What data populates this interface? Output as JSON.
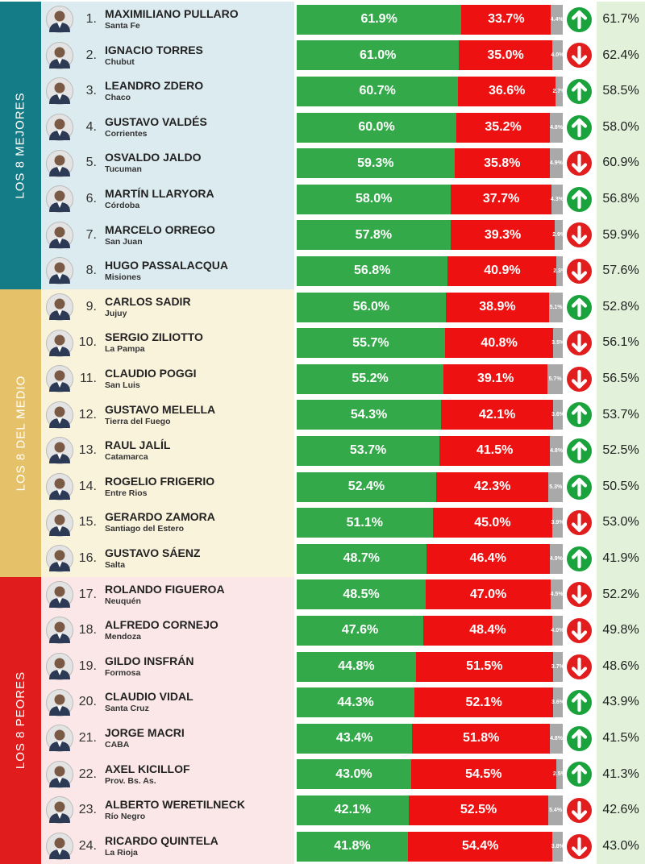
{
  "chart_data": {
    "type": "bar",
    "stacked": true,
    "orientation": "horizontal",
    "colors": {
      "positive": "#33a94a",
      "negative": "#ee1111",
      "neutral": "#a9a9a9",
      "trend_up": "#1aa33c",
      "trend_down": "#e11d1d",
      "previous_bg": "#e1f1da"
    },
    "sections": [
      {
        "title": "LOS 8 MEJORES",
        "color": "#137c87",
        "panel_color": "#dcebef",
        "start": 0,
        "count": 8
      },
      {
        "title": "LOS 8 DEL MEDIO",
        "color": "#e5c16a",
        "panel_color": "#faf3dc",
        "start": 8,
        "count": 8
      },
      {
        "title": "LOS 8 PEORES",
        "color": "#e01c1c",
        "panel_color": "#fbe7e7",
        "start": 16,
        "count": 8
      }
    ],
    "rows": [
      {
        "rank": "1.",
        "name": "MAXIMILIANO PULLARO",
        "province": "Santa Fe",
        "approve": 61.9,
        "approve_label": "61.9%",
        "disapprove": 33.7,
        "disapprove_label": "33.7%",
        "other": 4.4,
        "other_label": "4.4%",
        "trend": "up",
        "previous_label": "61.7%"
      },
      {
        "rank": "2.",
        "name": "IGNACIO TORRES",
        "province": "Chubut",
        "approve": 61.0,
        "approve_label": "61.0%",
        "disapprove": 35.0,
        "disapprove_label": "35.0%",
        "other": 4.0,
        "other_label": "4.0%",
        "trend": "down",
        "previous_label": "62.4%"
      },
      {
        "rank": "3.",
        "name": "LEANDRO ZDERO",
        "province": "Chaco",
        "approve": 60.7,
        "approve_label": "60.7%",
        "disapprove": 36.6,
        "disapprove_label": "36.6%",
        "other": 2.7,
        "other_label": "2.7%",
        "trend": "up",
        "previous_label": "58.5%"
      },
      {
        "rank": "4.",
        "name": "GUSTAVO VALDÉS",
        "province": "Corrientes",
        "approve": 60.0,
        "approve_label": "60.0%",
        "disapprove": 35.2,
        "disapprove_label": "35.2%",
        "other": 4.8,
        "other_label": "4.8%",
        "trend": "up",
        "previous_label": "58.0%"
      },
      {
        "rank": "5.",
        "name": "OSVALDO JALDO",
        "province": "Tucuman",
        "approve": 59.3,
        "approve_label": "59.3%",
        "disapprove": 35.8,
        "disapprove_label": "35.8%",
        "other": 4.9,
        "other_label": "4.9%",
        "trend": "down",
        "previous_label": "60.9%"
      },
      {
        "rank": "6.",
        "name": "MARTÍN LLARYORA",
        "province": "Córdoba",
        "approve": 58.0,
        "approve_label": "58.0%",
        "disapprove": 37.7,
        "disapprove_label": "37.7%",
        "other": 4.3,
        "other_label": "4.3%",
        "trend": "up",
        "previous_label": "56.8%"
      },
      {
        "rank": "7.",
        "name": "MARCELO ORREGO",
        "province": "San Juan",
        "approve": 57.8,
        "approve_label": "57.8%",
        "disapprove": 39.3,
        "disapprove_label": "39.3%",
        "other": 2.9,
        "other_label": "2.9%",
        "trend": "down",
        "previous_label": "59.9%"
      },
      {
        "rank": "8.",
        "name": "HUGO PASSALACQUA",
        "province": "Misiones",
        "approve": 56.8,
        "approve_label": "56.8%",
        "disapprove": 40.9,
        "disapprove_label": "40.9%",
        "other": 2.3,
        "other_label": "2.3%",
        "trend": "down",
        "previous_label": "57.6%"
      },
      {
        "rank": "9.",
        "name": "CARLOS SADIR",
        "province": "Jujuy",
        "approve": 56.0,
        "approve_label": "56.0%",
        "disapprove": 38.9,
        "disapprove_label": "38.9%",
        "other": 5.1,
        "other_label": "5.1%",
        "trend": "up",
        "previous_label": "52.8%"
      },
      {
        "rank": "10.",
        "name": "SERGIO ZILIOTTO",
        "province": "La Pampa",
        "approve": 55.7,
        "approve_label": "55.7%",
        "disapprove": 40.8,
        "disapprove_label": "40.8%",
        "other": 3.5,
        "other_label": "3.5%",
        "trend": "down",
        "previous_label": "56.1%"
      },
      {
        "rank": "11.",
        "name": "CLAUDIO POGGI",
        "province": "San Luis",
        "approve": 55.2,
        "approve_label": "55.2%",
        "disapprove": 39.1,
        "disapprove_label": "39.1%",
        "other": 5.7,
        "other_label": "5.7%",
        "trend": "down",
        "previous_label": "56.5%"
      },
      {
        "rank": "12.",
        "name": "GUSTAVO MELELLA",
        "province": "Tierra del Fuego",
        "approve": 54.3,
        "approve_label": "54.3%",
        "disapprove": 42.1,
        "disapprove_label": "42.1%",
        "other": 3.6,
        "other_label": "3.6%",
        "trend": "up",
        "previous_label": "53.7%"
      },
      {
        "rank": "13.",
        "name": "RAUL JALÍL",
        "province": "Catamarca",
        "approve": 53.7,
        "approve_label": "53.7%",
        "disapprove": 41.5,
        "disapprove_label": "41.5%",
        "other": 4.8,
        "other_label": "4.8%",
        "trend": "up",
        "previous_label": "52.5%"
      },
      {
        "rank": "14.",
        "name": "ROGELIO FRIGERIO",
        "province": "Entre Rios",
        "approve": 52.4,
        "approve_label": "52.4%",
        "disapprove": 42.3,
        "disapprove_label": "42.3%",
        "other": 5.3,
        "other_label": "5.3%",
        "trend": "up",
        "previous_label": "50.5%"
      },
      {
        "rank": "15.",
        "name": "GERARDO ZAMORA",
        "province": "Santiago del Estero",
        "approve": 51.1,
        "approve_label": "51.1%",
        "disapprove": 45.0,
        "disapprove_label": "45.0%",
        "other": 3.9,
        "other_label": "3.9%",
        "trend": "down",
        "previous_label": "53.0%"
      },
      {
        "rank": "16.",
        "name": "GUSTAVO SÁENZ",
        "province": "Salta",
        "approve": 48.7,
        "approve_label": "48.7%",
        "disapprove": 46.4,
        "disapprove_label": "46.4%",
        "other": 4.9,
        "other_label": "4.9%",
        "trend": "up",
        "previous_label": "41.9%"
      },
      {
        "rank": "17.",
        "name": "ROLANDO FIGUEROA",
        "province": "Neuquén",
        "approve": 48.5,
        "approve_label": "48.5%",
        "disapprove": 47.0,
        "disapprove_label": "47.0%",
        "other": 4.5,
        "other_label": "4.5%",
        "trend": "down",
        "previous_label": "52.2%"
      },
      {
        "rank": "18.",
        "name": "ALFREDO CORNEJO",
        "province": "Mendoza",
        "approve": 47.6,
        "approve_label": "47.6%",
        "disapprove": 48.4,
        "disapprove_label": "48.4%",
        "other": 4.0,
        "other_label": "4.0%",
        "trend": "down",
        "previous_label": "49.8%"
      },
      {
        "rank": "19.",
        "name": "GILDO INSFRÁN",
        "province": "Formosa",
        "approve": 44.8,
        "approve_label": "44.8%",
        "disapprove": 51.5,
        "disapprove_label": "51.5%",
        "other": 3.7,
        "other_label": "3.7%",
        "trend": "down",
        "previous_label": "48.6%"
      },
      {
        "rank": "20.",
        "name": "CLAUDIO VIDAL",
        "province": "Santa Cruz",
        "approve": 44.3,
        "approve_label": "44.3%",
        "disapprove": 52.1,
        "disapprove_label": "52.1%",
        "other": 3.6,
        "other_label": "3.6%",
        "trend": "up",
        "previous_label": "43.9%"
      },
      {
        "rank": "21.",
        "name": "JORGE MACRI",
        "province": "CABA",
        "approve": 43.4,
        "approve_label": "43.4%",
        "disapprove": 51.8,
        "disapprove_label": "51.8%",
        "other": 4.8,
        "other_label": "4.8%",
        "trend": "up",
        "previous_label": "41.5%"
      },
      {
        "rank": "22.",
        "name": "AXEL KICILLOF",
        "province": "Prov. Bs. As.",
        "approve": 43.0,
        "approve_label": "43.0%",
        "disapprove": 54.5,
        "disapprove_label": "54.5%",
        "other": 2.5,
        "other_label": "2.5%",
        "trend": "up",
        "previous_label": "41.3%"
      },
      {
        "rank": "23.",
        "name": "ALBERTO WERETILNECK",
        "province": "Río Negro",
        "approve": 42.1,
        "approve_label": "42.1%",
        "disapprove": 52.5,
        "disapprove_label": "52.5%",
        "other": 5.4,
        "other_label": "5.4%",
        "trend": "down",
        "previous_label": "42.6%"
      },
      {
        "rank": "24.",
        "name": "RICARDO QUINTELA",
        "province": "La Rioja",
        "approve": 41.8,
        "approve_label": "41.8%",
        "disapprove": 54.4,
        "disapprove_label": "54.4%",
        "other": 3.8,
        "other_label": "3.8%",
        "trend": "down",
        "previous_label": "43.0%"
      }
    ]
  }
}
